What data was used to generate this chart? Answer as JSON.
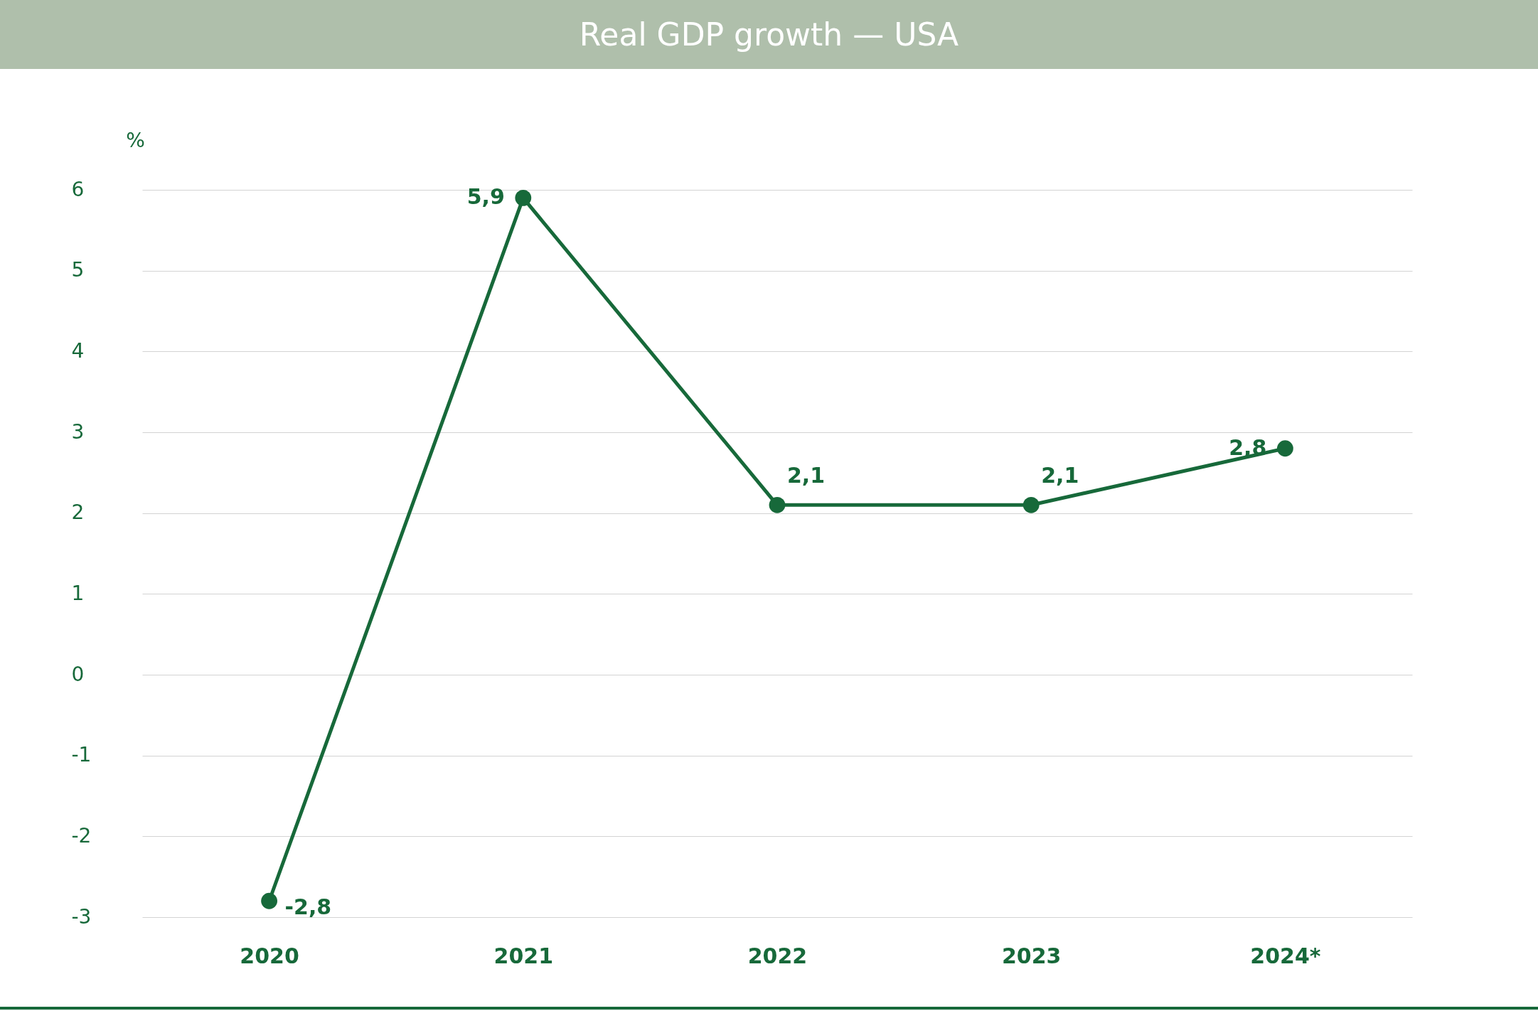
{
  "chart_data": {
    "type": "line",
    "title": "Real GDP growth — USA",
    "ylabel": "%",
    "categories": [
      "2020",
      "2021",
      "2022",
      "2023",
      "2024*"
    ],
    "series": [
      {
        "color": "#17693a",
        "values": [
          -2.8,
          5.9,
          2.1,
          2.1,
          2.8
        ],
        "value_labels": [
          "-2,8",
          "5,9",
          "2,1",
          "2,1",
          "2,8"
        ]
      }
    ],
    "ylim": [
      -3,
      6
    ],
    "yticks": [
      -3,
      -2,
      -1,
      0,
      1,
      2,
      3,
      4,
      5,
      6
    ],
    "grid": "y",
    "marker": "circle",
    "legend": false
  }
}
